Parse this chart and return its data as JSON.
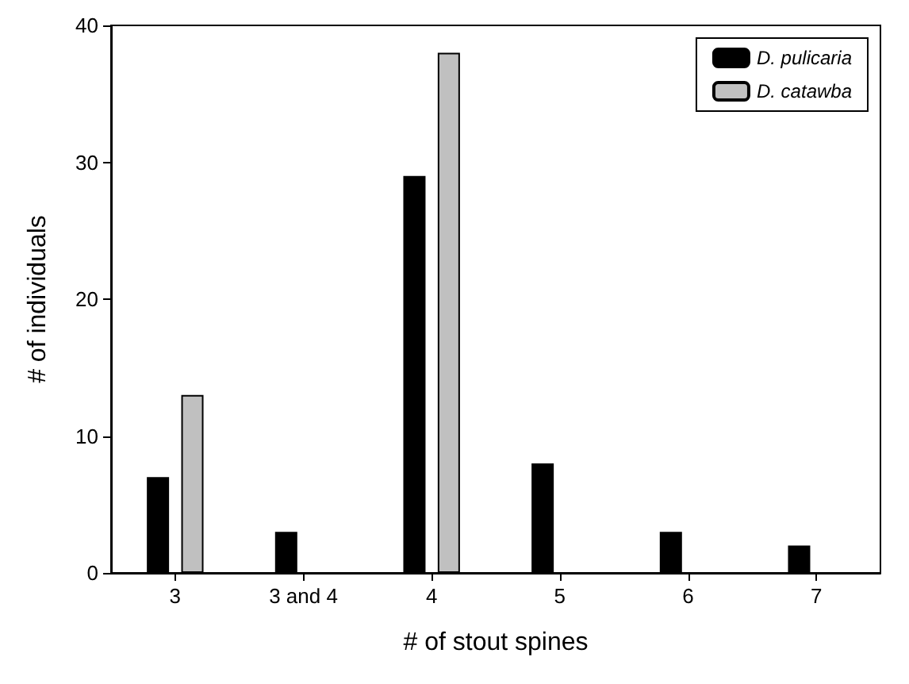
{
  "chart_data": {
    "type": "bar",
    "xlabel": "# of stout spines",
    "ylabel": "# of individuals",
    "categories": [
      "3",
      "3 and 4",
      "4",
      "5",
      "6",
      "7"
    ],
    "series": [
      {
        "name": "D. pulicaria",
        "color": "#000000",
        "values": [
          7,
          3,
          29,
          8,
          3,
          2
        ]
      },
      {
        "name": "D. catawba",
        "color": "#c0c0c0",
        "values": [
          13,
          null,
          38,
          null,
          null,
          null
        ]
      }
    ],
    "ylim": [
      0,
      40
    ],
    "yticks": [
      0,
      10,
      20,
      30,
      40
    ],
    "grid": false,
    "legend": "top right"
  }
}
